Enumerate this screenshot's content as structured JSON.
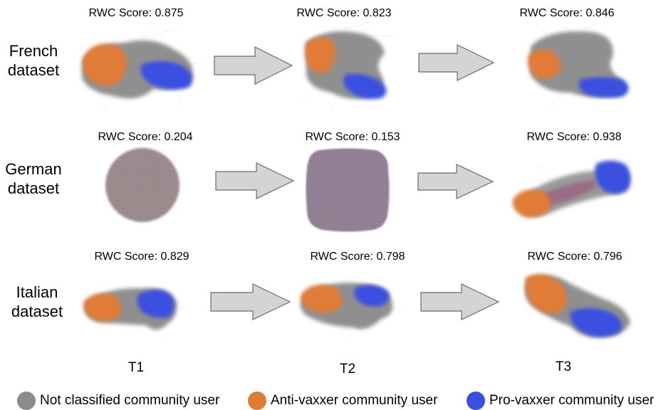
{
  "rows": [
    {
      "label_line1": "French",
      "label_line2": "dataset",
      "scores": [
        "RWC Score: 0.875",
        "RWC Score: 0.823",
        "RWC Score: 0.846"
      ]
    },
    {
      "label_line1": "German",
      "label_line2": "dataset",
      "scores": [
        "RWC Score: 0.204",
        "RWC Score: 0.153",
        "RWC Score: 0.938"
      ]
    },
    {
      "label_line1": "Italian",
      "label_line2": "dataset",
      "scores": [
        "RWC Score: 0.829",
        "RWC Score: 0.798",
        "RWC Score: 0.796"
      ]
    }
  ],
  "time_labels": [
    "T1",
    "T2",
    "T3"
  ],
  "legend": [
    {
      "label": "Not classified community user",
      "color": "#8c8c8c"
    },
    {
      "label": "Anti-vaxxer community user",
      "color": "#e07b39"
    },
    {
      "label": "Pro-vaxxer community user",
      "color": "#3a4fe0"
    }
  ],
  "colors": {
    "not_classified": "#8c8c8c",
    "anti": "#e07b39",
    "pro": "#3a4fe0",
    "arrow_fill": "#d4d4d4",
    "arrow_stroke": "#6b6b6b"
  }
}
